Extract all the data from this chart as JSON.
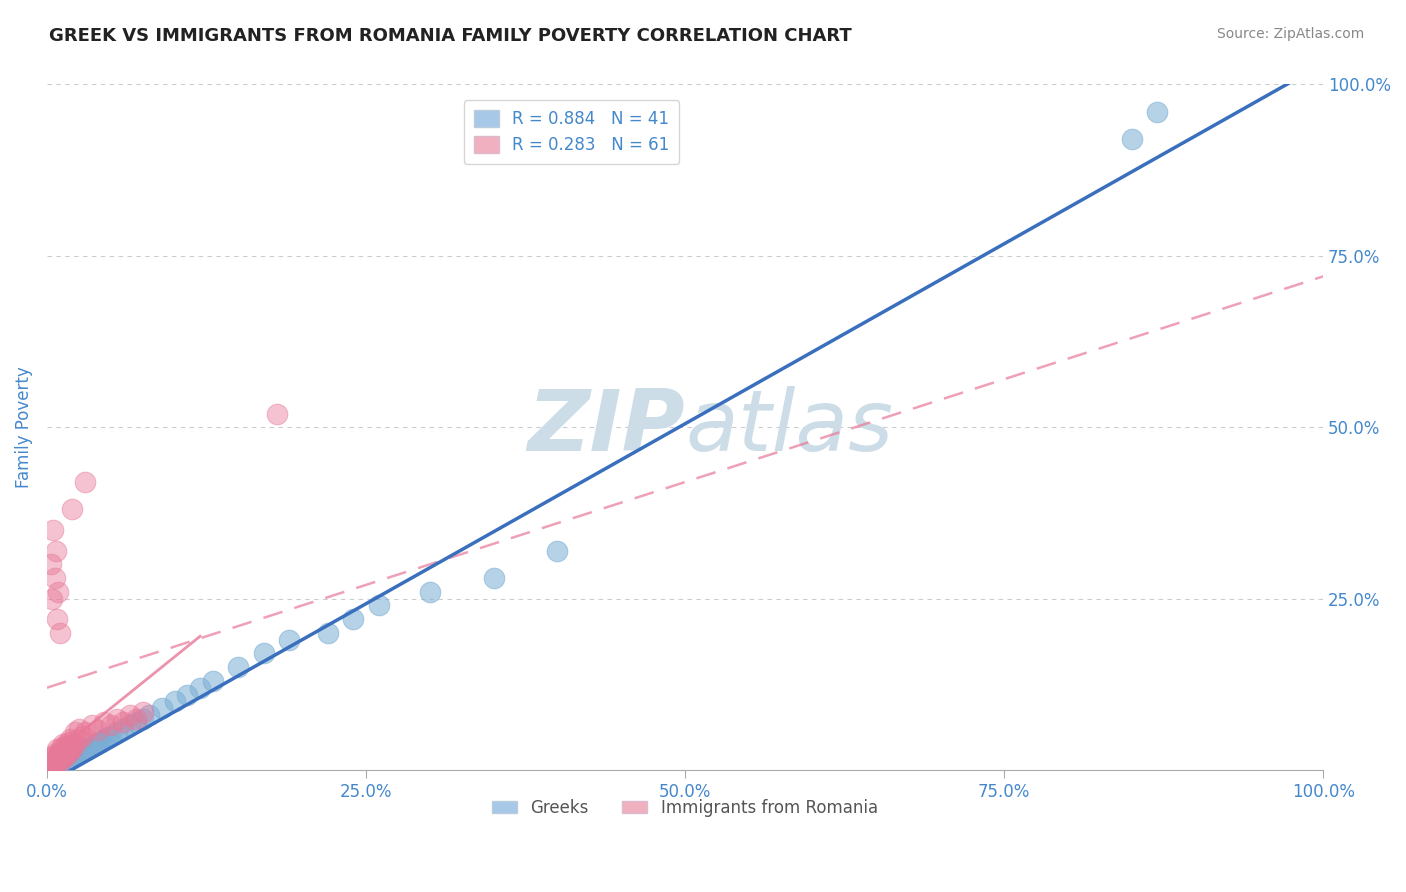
{
  "title": "GREEK VS IMMIGRANTS FROM ROMANIA FAMILY POVERTY CORRELATION CHART",
  "source_text": "Source: ZipAtlas.com",
  "ylabel": "Family Poverty",
  "xlim": [
    0,
    1.0
  ],
  "ylim": [
    0,
    1.0
  ],
  "xtick_labels": [
    "0.0%",
    "25.0%",
    "50.0%",
    "75.0%",
    "100.0%"
  ],
  "xtick_values": [
    0.0,
    0.25,
    0.5,
    0.75,
    1.0
  ],
  "ytick_labels": [
    "25.0%",
    "50.0%",
    "75.0%",
    "100.0%"
  ],
  "ytick_values": [
    0.25,
    0.5,
    0.75,
    1.0
  ],
  "legend_entries": [
    {
      "label": "R = 0.884   N = 41",
      "color": "#a8c8e8"
    },
    {
      "label": "R = 0.283   N = 61",
      "color": "#f0b0c0"
    }
  ],
  "legend_labels": [
    "Greeks",
    "Immigrants from Romania"
  ],
  "greeks_color": "#7aadd4",
  "romania_color": "#e87898",
  "greeks_line_color": "#3a6fbe",
  "romania_line_color": "#e87898",
  "grid_color": "#cccccc",
  "background_color": "#ffffff",
  "watermark_color": "#ccdde8",
  "title_fontsize": 13,
  "tick_label_color": "#4488cc",
  "ylabel_color": "#4488cc",
  "greeks_x": [
    0.005,
    0.008,
    0.01,
    0.012,
    0.015,
    0.018,
    0.02,
    0.022,
    0.025,
    0.028,
    0.03,
    0.032,
    0.035,
    0.038,
    0.04,
    0.042,
    0.045,
    0.048,
    0.05,
    0.055,
    0.06,
    0.065,
    0.07,
    0.075,
    0.08,
    0.09,
    0.1,
    0.11,
    0.12,
    0.13,
    0.15,
    0.17,
    0.19,
    0.22,
    0.24,
    0.26,
    0.3,
    0.35,
    0.4,
    0.85,
    0.87
  ],
  "greeks_y": [
    0.005,
    0.01,
    0.008,
    0.015,
    0.012,
    0.018,
    0.02,
    0.022,
    0.025,
    0.028,
    0.03,
    0.032,
    0.035,
    0.038,
    0.04,
    0.042,
    0.045,
    0.048,
    0.05,
    0.055,
    0.06,
    0.065,
    0.07,
    0.075,
    0.08,
    0.09,
    0.1,
    0.11,
    0.12,
    0.13,
    0.15,
    0.17,
    0.19,
    0.2,
    0.22,
    0.24,
    0.26,
    0.28,
    0.32,
    0.92,
    0.96
  ],
  "romania_x": [
    0.002,
    0.003,
    0.003,
    0.004,
    0.004,
    0.005,
    0.005,
    0.006,
    0.006,
    0.007,
    0.007,
    0.008,
    0.008,
    0.009,
    0.009,
    0.01,
    0.01,
    0.011,
    0.011,
    0.012,
    0.012,
    0.013,
    0.013,
    0.014,
    0.014,
    0.015,
    0.015,
    0.016,
    0.016,
    0.017,
    0.018,
    0.018,
    0.019,
    0.02,
    0.02,
    0.022,
    0.022,
    0.025,
    0.025,
    0.028,
    0.03,
    0.035,
    0.04,
    0.045,
    0.05,
    0.055,
    0.06,
    0.065,
    0.07,
    0.075,
    0.003,
    0.004,
    0.005,
    0.006,
    0.007,
    0.008,
    0.009,
    0.01,
    0.02,
    0.03,
    0.18
  ],
  "romania_y": [
    0.005,
    0.008,
    0.012,
    0.006,
    0.018,
    0.01,
    0.02,
    0.008,
    0.015,
    0.012,
    0.025,
    0.015,
    0.03,
    0.018,
    0.022,
    0.012,
    0.025,
    0.02,
    0.032,
    0.018,
    0.028,
    0.022,
    0.038,
    0.025,
    0.035,
    0.02,
    0.032,
    0.025,
    0.04,
    0.03,
    0.028,
    0.045,
    0.035,
    0.03,
    0.042,
    0.038,
    0.055,
    0.045,
    0.06,
    0.05,
    0.055,
    0.065,
    0.058,
    0.07,
    0.065,
    0.075,
    0.07,
    0.08,
    0.075,
    0.085,
    0.3,
    0.25,
    0.35,
    0.28,
    0.32,
    0.22,
    0.26,
    0.2,
    0.38,
    0.42,
    0.52
  ],
  "greeks_slope": 1.05,
  "greeks_intercept": -0.02,
  "romania_slope": 0.6,
  "romania_intercept": 0.12
}
